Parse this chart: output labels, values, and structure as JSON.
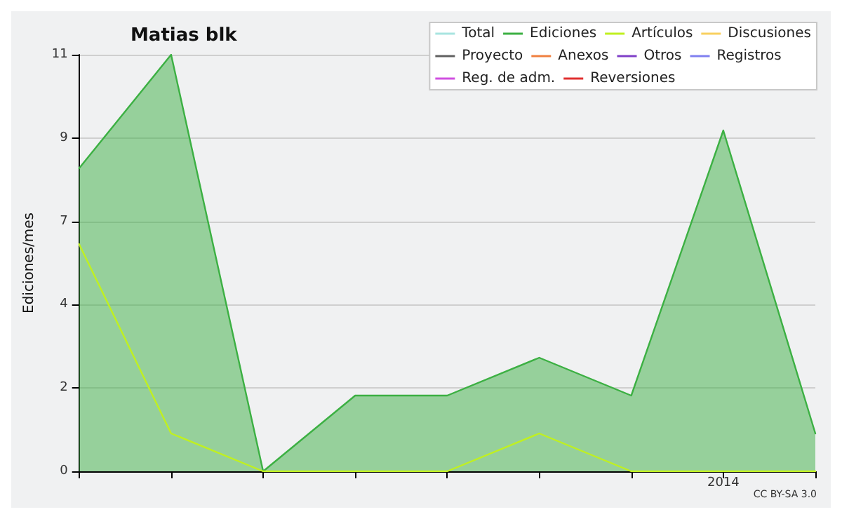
{
  "chart_data": {
    "type": "line",
    "title": "Matias blk",
    "ylabel": "Ediciones/mes",
    "annotations": [
      "CC BY-SA 3.0"
    ],
    "categories": [
      null,
      null,
      null,
      null,
      null,
      null,
      null,
      "2014",
      null
    ],
    "ylim": [
      0,
      11
    ],
    "yticks": [
      0,
      {
        "value": 2.2,
        "label": "2"
      },
      {
        "value": 4.4,
        "label": "4"
      },
      {
        "value": 6.6,
        "label": "7"
      },
      {
        "value": 8.8,
        "label": "9"
      },
      11
    ],
    "grid": "y",
    "legend": "top right",
    "marker": "none",
    "line_style": "solid",
    "series": [
      {
        "name": "Total",
        "color": "#a8e4e0",
        "values": [
          null,
          null,
          null,
          null,
          null,
          null,
          null,
          null,
          null
        ]
      },
      {
        "name": "Ediciones",
        "color": "#3cb043",
        "type": "area",
        "values": [
          8,
          11,
          0,
          2,
          2,
          3,
          2,
          9,
          1
        ]
      },
      {
        "name": "Artículos",
        "color": "#c0f020",
        "values": [
          6,
          1,
          0,
          0,
          0,
          1,
          0,
          0,
          0
        ]
      },
      {
        "name": "Discusiones",
        "color": "#f8d060",
        "values": [
          null,
          null,
          null,
          null,
          null,
          null,
          null,
          null,
          null
        ]
      },
      {
        "name": "Proyecto",
        "color": "#606060",
        "values": [
          null,
          null,
          null,
          null,
          null,
          null,
          null,
          null,
          null
        ]
      },
      {
        "name": "Anexos",
        "color": "#f08040",
        "values": [
          null,
          null,
          null,
          null,
          null,
          null,
          null,
          null,
          null
        ]
      },
      {
        "name": "Otros",
        "color": "#8040c8",
        "values": [
          null,
          null,
          null,
          null,
          null,
          null,
          null,
          null,
          null
        ]
      },
      {
        "name": "Registros",
        "color": "#8080f0",
        "values": [
          null,
          null,
          null,
          null,
          null,
          null,
          null,
          null,
          null
        ]
      },
      {
        "name": "Reg. de adm.",
        "color": "#d050e0",
        "values": [
          null,
          null,
          null,
          null,
          null,
          null,
          null,
          null,
          null
        ]
      },
      {
        "name": "Reversiones",
        "color": "#e03030",
        "values": [
          null,
          null,
          null,
          null,
          null,
          null,
          null,
          null,
          null
        ]
      }
    ]
  }
}
